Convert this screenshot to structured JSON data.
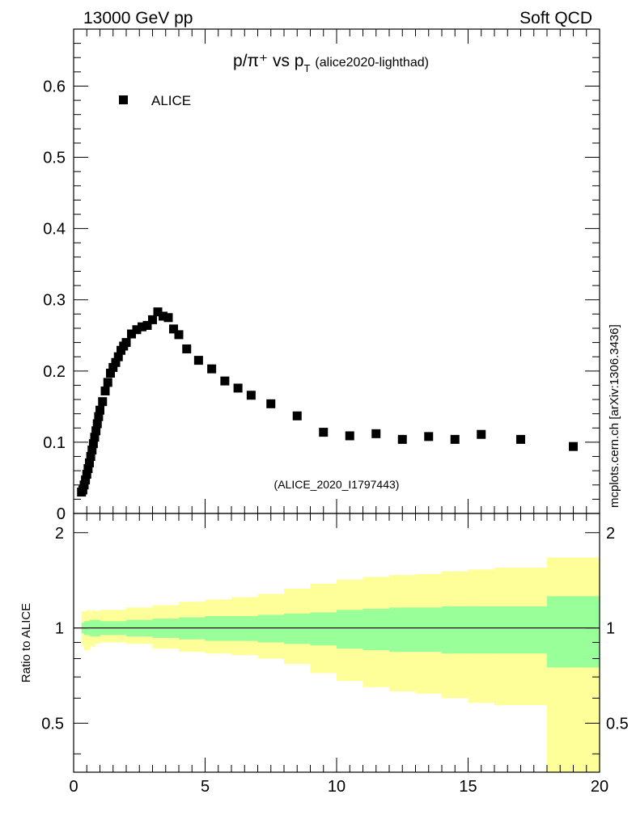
{
  "header": {
    "energy_label": "13000 GeV pp",
    "process_label": "Soft QCD",
    "side_label": "mcplots.cern.ch [arXiv:1306.3436]"
  },
  "chart_data": [
    {
      "type": "scatter",
      "title_main": "p/π⁺ vs p",
      "title_sub": "T",
      "title_extra": "(alice2020-lighthad)",
      "watermark": "(ALICE_2020_I1797443)",
      "legend": "ALICE",
      "xlim": [
        0,
        20
      ],
      "ylim": [
        0,
        0.68
      ],
      "y_ticks": [
        0.1,
        0.2,
        0.3,
        0.4,
        0.5,
        0.6
      ],
      "y_tick_labels": [
        "0.1",
        "0.2",
        "0.3",
        "0.4",
        "0.5",
        "0.6"
      ],
      "y_zero_label": "0",
      "series": [
        {
          "name": "ALICE",
          "color": "#000000",
          "points": [
            [
              0.3,
              0.03
            ],
            [
              0.35,
              0.033
            ],
            [
              0.4,
              0.04
            ],
            [
              0.45,
              0.047
            ],
            [
              0.5,
              0.055
            ],
            [
              0.55,
              0.063
            ],
            [
              0.6,
              0.071
            ],
            [
              0.65,
              0.08
            ],
            [
              0.7,
              0.089
            ],
            [
              0.75,
              0.098
            ],
            [
              0.8,
              0.107
            ],
            [
              0.85,
              0.116
            ],
            [
              0.9,
              0.126
            ],
            [
              0.95,
              0.136
            ],
            [
              1.0,
              0.145
            ],
            [
              1.1,
              0.157
            ],
            [
              1.2,
              0.172
            ],
            [
              1.3,
              0.184
            ],
            [
              1.4,
              0.197
            ],
            [
              1.5,
              0.205
            ],
            [
              1.6,
              0.212
            ],
            [
              1.7,
              0.22
            ],
            [
              1.8,
              0.229
            ],
            [
              1.9,
              0.235
            ],
            [
              2.0,
              0.24
            ],
            [
              2.2,
              0.252
            ],
            [
              2.4,
              0.258
            ],
            [
              2.6,
              0.262
            ],
            [
              2.8,
              0.264
            ],
            [
              3.0,
              0.272
            ],
            [
              3.2,
              0.283
            ],
            [
              3.4,
              0.277
            ],
            [
              3.6,
              0.275
            ],
            [
              3.8,
              0.259
            ],
            [
              4.0,
              0.251
            ],
            [
              4.3,
              0.231
            ],
            [
              4.75,
              0.215
            ],
            [
              5.25,
              0.203
            ],
            [
              5.75,
              0.186
            ],
            [
              6.25,
              0.176
            ],
            [
              6.75,
              0.166
            ],
            [
              7.5,
              0.154
            ],
            [
              8.5,
              0.137
            ],
            [
              9.5,
              0.114
            ],
            [
              10.5,
              0.109
            ],
            [
              11.5,
              0.112
            ],
            [
              12.5,
              0.104
            ],
            [
              13.5,
              0.108
            ],
            [
              14.5,
              0.104
            ],
            [
              15.5,
              0.111
            ],
            [
              17.0,
              0.104
            ],
            [
              19.0,
              0.094
            ]
          ]
        }
      ]
    },
    {
      "type": "area",
      "ylabel": "Ratio to ALICE",
      "xlim": [
        0,
        20
      ],
      "ylim": [
        0.35,
        2.3
      ],
      "x_ticks": [
        0,
        5,
        10,
        15,
        20
      ],
      "x_tick_labels": [
        "0",
        "5",
        "10",
        "15",
        "20"
      ],
      "y_ticks": [
        0.5,
        1,
        2
      ],
      "y_tick_labels": [
        "0.5",
        "1",
        "2"
      ],
      "reference_line": 1.0,
      "bands": {
        "edges": [
          0.3,
          0.4,
          0.5,
          0.6,
          0.7,
          0.8,
          1.0,
          1.5,
          2.0,
          3.0,
          4.0,
          5.0,
          6.0,
          7.0,
          8.0,
          9.0,
          10.0,
          11.0,
          12.0,
          13.0,
          14.0,
          15.0,
          16.0,
          18.0,
          20.0
        ],
        "inner_color": "#99ff99",
        "outer_color": "#ffff99",
        "inner_low": [
          0.96,
          0.95,
          0.95,
          0.94,
          0.94,
          0.94,
          0.95,
          0.95,
          0.94,
          0.93,
          0.92,
          0.91,
          0.91,
          0.9,
          0.89,
          0.88,
          0.86,
          0.85,
          0.84,
          0.84,
          0.83,
          0.83,
          0.83,
          0.75
        ],
        "inner_high": [
          1.04,
          1.05,
          1.05,
          1.06,
          1.06,
          1.06,
          1.05,
          1.05,
          1.06,
          1.07,
          1.08,
          1.09,
          1.09,
          1.1,
          1.11,
          1.12,
          1.14,
          1.15,
          1.16,
          1.16,
          1.17,
          1.17,
          1.17,
          1.26
        ],
        "outer_low": [
          0.88,
          0.85,
          0.85,
          0.88,
          0.87,
          0.89,
          0.9,
          0.9,
          0.89,
          0.86,
          0.84,
          0.83,
          0.82,
          0.8,
          0.77,
          0.72,
          0.68,
          0.65,
          0.63,
          0.62,
          0.6,
          0.58,
          0.57,
          0.31
        ],
        "outer_high": [
          1.13,
          1.13,
          1.14,
          1.12,
          1.14,
          1.13,
          1.14,
          1.14,
          1.16,
          1.18,
          1.21,
          1.23,
          1.25,
          1.28,
          1.33,
          1.38,
          1.42,
          1.45,
          1.47,
          1.48,
          1.51,
          1.53,
          1.55,
          1.67
        ]
      }
    }
  ]
}
